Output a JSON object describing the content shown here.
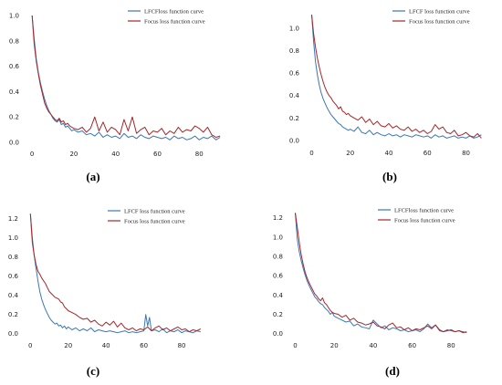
{
  "colors": {
    "lfcf": "#3a76b8",
    "focus": "#a5262a"
  },
  "captions": [
    "(a)",
    "(b)",
    "(c)",
    "(d)"
  ],
  "chart_data": [
    {
      "type": "line",
      "legend": "top-right",
      "xticks": [
        0,
        20,
        40,
        60,
        80
      ],
      "yticks": [
        "0.0",
        "0.2",
        "0.4",
        "0.6",
        "0.8",
        "1.0"
      ],
      "xlim": [
        -4,
        93
      ],
      "ylim": [
        -0.05,
        1.05
      ],
      "series": [
        {
          "name": "LFCFloss function curve",
          "color": "#3a76b8",
          "x": [
            0,
            1,
            2,
            3,
            4,
            5,
            6,
            7,
            8,
            9,
            10,
            11,
            12,
            13,
            14,
            15,
            16,
            17,
            18,
            19,
            20,
            22,
            24,
            26,
            28,
            30,
            32,
            34,
            36,
            38,
            40,
            42,
            44,
            46,
            48,
            50,
            52,
            54,
            56,
            58,
            60,
            62,
            64,
            66,
            68,
            70,
            72,
            74,
            76,
            78,
            80,
            82,
            84,
            86,
            88,
            90
          ],
          "values": [
            1.0,
            0.82,
            0.66,
            0.55,
            0.47,
            0.4,
            0.34,
            0.29,
            0.25,
            0.22,
            0.19,
            0.17,
            0.16,
            0.18,
            0.14,
            0.15,
            0.12,
            0.13,
            0.11,
            0.09,
            0.1,
            0.08,
            0.09,
            0.06,
            0.07,
            0.05,
            0.08,
            0.04,
            0.06,
            0.04,
            0.05,
            0.03,
            0.07,
            0.04,
            0.05,
            0.03,
            0.06,
            0.04,
            0.03,
            0.05,
            0.04,
            0.03,
            0.04,
            0.02,
            0.05,
            0.03,
            0.04,
            0.02,
            0.03,
            0.05,
            0.02,
            0.04,
            0.03,
            0.05,
            0.02,
            0.04
          ]
        },
        {
          "name": "Focus loss function curve",
          "color": "#a5262a",
          "x": [
            0,
            1,
            2,
            3,
            4,
            5,
            6,
            7,
            8,
            9,
            10,
            11,
            12,
            13,
            14,
            15,
            16,
            17,
            18,
            19,
            20,
            22,
            24,
            26,
            28,
            30,
            32,
            34,
            36,
            38,
            40,
            42,
            44,
            46,
            48,
            50,
            52,
            54,
            56,
            58,
            60,
            62,
            64,
            66,
            68,
            70,
            72,
            74,
            76,
            78,
            80,
            82,
            84,
            86,
            88,
            90
          ],
          "values": [
            1.0,
            0.78,
            0.64,
            0.54,
            0.45,
            0.38,
            0.31,
            0.27,
            0.24,
            0.22,
            0.2,
            0.18,
            0.17,
            0.19,
            0.16,
            0.17,
            0.14,
            0.15,
            0.13,
            0.12,
            0.11,
            0.1,
            0.12,
            0.08,
            0.11,
            0.2,
            0.09,
            0.16,
            0.08,
            0.12,
            0.1,
            0.06,
            0.18,
            0.09,
            0.2,
            0.07,
            0.1,
            0.12,
            0.06,
            0.09,
            0.08,
            0.11,
            0.06,
            0.09,
            0.07,
            0.12,
            0.08,
            0.1,
            0.09,
            0.13,
            0.11,
            0.08,
            0.12,
            0.06,
            0.04,
            0.05
          ]
        }
      ]
    },
    {
      "type": "line",
      "legend": "top-right",
      "xticks": [
        0,
        20,
        40,
        60,
        80
      ],
      "yticks": [
        "0.0",
        "0.2",
        "0.4",
        "0.6",
        "0.8",
        "1.0"
      ],
      "xlim": [
        -4,
        93
      ],
      "ylim": [
        -0.05,
        1.17
      ],
      "series": [
        {
          "name": "LFCF loss function curve",
          "color": "#3a76b8",
          "x": [
            0,
            1,
            2,
            3,
            4,
            5,
            6,
            7,
            8,
            9,
            10,
            11,
            12,
            13,
            14,
            15,
            16,
            17,
            18,
            19,
            20,
            22,
            24,
            26,
            28,
            30,
            32,
            34,
            36,
            38,
            40,
            42,
            44,
            46,
            48,
            50,
            52,
            54,
            56,
            58,
            60,
            62,
            64,
            66,
            68,
            70,
            72,
            74,
            76,
            78,
            80,
            82,
            84,
            86,
            88
          ],
          "values": [
            1.12,
            0.88,
            0.7,
            0.58,
            0.49,
            0.42,
            0.37,
            0.33,
            0.29,
            0.26,
            0.23,
            0.21,
            0.19,
            0.17,
            0.15,
            0.14,
            0.12,
            0.11,
            0.1,
            0.09,
            0.1,
            0.08,
            0.12,
            0.07,
            0.06,
            0.09,
            0.05,
            0.07,
            0.05,
            0.04,
            0.06,
            0.04,
            0.05,
            0.03,
            0.05,
            0.04,
            0.03,
            0.05,
            0.04,
            0.03,
            0.04,
            0.02,
            0.05,
            0.03,
            0.04,
            0.02,
            0.03,
            0.04,
            0.02,
            0.03,
            0.02,
            0.04,
            0.02,
            0.03,
            0.05
          ]
        },
        {
          "name": "Focus loss function curve",
          "color": "#a5262a",
          "x": [
            0,
            1,
            2,
            3,
            4,
            5,
            6,
            7,
            8,
            9,
            10,
            11,
            12,
            13,
            14,
            15,
            16,
            17,
            18,
            19,
            20,
            22,
            24,
            26,
            28,
            30,
            32,
            34,
            36,
            38,
            40,
            42,
            44,
            46,
            48,
            50,
            52,
            54,
            56,
            58,
            60,
            62,
            64,
            66,
            68,
            70,
            72,
            74,
            76,
            78,
            80,
            82,
            84,
            86,
            88
          ],
          "values": [
            1.12,
            0.95,
            0.83,
            0.73,
            0.65,
            0.58,
            0.52,
            0.47,
            0.43,
            0.4,
            0.38,
            0.35,
            0.33,
            0.31,
            0.28,
            0.3,
            0.26,
            0.25,
            0.23,
            0.24,
            0.22,
            0.2,
            0.18,
            0.21,
            0.16,
            0.19,
            0.14,
            0.17,
            0.13,
            0.12,
            0.15,
            0.11,
            0.13,
            0.1,
            0.09,
            0.12,
            0.08,
            0.1,
            0.07,
            0.09,
            0.06,
            0.08,
            0.14,
            0.1,
            0.12,
            0.07,
            0.06,
            0.09,
            0.04,
            0.05,
            0.07,
            0.04,
            0.03,
            0.06,
            0.02
          ]
        }
      ]
    },
    {
      "type": "line",
      "legend": "top-right",
      "xticks": [
        0,
        20,
        40,
        60,
        80
      ],
      "yticks": [
        "0.0",
        "0.2",
        "0.4",
        "0.6",
        "0.8",
        "1.0",
        "1.2"
      ],
      "xlim": [
        -4,
        93
      ],
      "ylim": [
        -0.05,
        1.3
      ],
      "series": [
        {
          "name": "LFCF loss function curve",
          "color": "#3a76b8",
          "x": [
            0,
            1,
            2,
            3,
            4,
            5,
            6,
            7,
            8,
            9,
            10,
            11,
            12,
            13,
            14,
            15,
            16,
            17,
            18,
            19,
            20,
            22,
            24,
            26,
            28,
            30,
            32,
            34,
            36,
            38,
            40,
            42,
            44,
            46,
            48,
            50,
            52,
            54,
            56,
            58,
            60,
            61,
            62,
            63,
            64,
            66,
            68,
            70,
            72,
            74,
            76,
            78,
            80,
            82,
            84,
            86,
            88,
            90
          ],
          "values": [
            1.25,
            1.0,
            0.82,
            0.68,
            0.55,
            0.44,
            0.36,
            0.3,
            0.25,
            0.21,
            0.17,
            0.14,
            0.12,
            0.1,
            0.11,
            0.08,
            0.09,
            0.06,
            0.08,
            0.05,
            0.07,
            0.04,
            0.06,
            0.03,
            0.05,
            0.03,
            0.06,
            0.02,
            0.04,
            0.03,
            0.02,
            0.03,
            0.02,
            0.01,
            0.02,
            0.03,
            0.01,
            0.02,
            0.01,
            0.02,
            0.03,
            0.2,
            0.08,
            0.17,
            0.03,
            0.04,
            0.02,
            0.05,
            0.01,
            0.03,
            0.02,
            0.04,
            0.01,
            0.03,
            0.02,
            0.01,
            0.03,
            0.02
          ]
        },
        {
          "name": "Focus loss function curve",
          "color": "#a5262a",
          "x": [
            0,
            1,
            2,
            3,
            4,
            5,
            6,
            7,
            8,
            9,
            10,
            11,
            12,
            13,
            14,
            15,
            16,
            17,
            18,
            19,
            20,
            22,
            24,
            26,
            28,
            30,
            32,
            34,
            36,
            38,
            40,
            42,
            44,
            46,
            48,
            50,
            52,
            54,
            56,
            58,
            60,
            62,
            64,
            66,
            68,
            70,
            72,
            74,
            76,
            78,
            80,
            82,
            84,
            86,
            88,
            90
          ],
          "values": [
            1.25,
            0.95,
            0.82,
            0.72,
            0.65,
            0.62,
            0.58,
            0.55,
            0.52,
            0.48,
            0.44,
            0.42,
            0.4,
            0.38,
            0.37,
            0.36,
            0.33,
            0.32,
            0.28,
            0.26,
            0.24,
            0.22,
            0.2,
            0.17,
            0.15,
            0.16,
            0.12,
            0.14,
            0.1,
            0.08,
            0.12,
            0.09,
            0.13,
            0.07,
            0.11,
            0.06,
            0.04,
            0.06,
            0.03,
            0.05,
            0.04,
            0.07,
            0.03,
            0.06,
            0.08,
            0.04,
            0.06,
            0.03,
            0.05,
            0.07,
            0.04,
            0.05,
            0.02,
            0.04,
            0.03,
            0.05
          ]
        }
      ]
    },
    {
      "type": "line",
      "legend": "top-right",
      "xticks": [
        0,
        20,
        40,
        60,
        80
      ],
      "yticks": [
        "0.0",
        "0.2",
        "0.4",
        "0.6",
        "0.8",
        "1.0",
        "1.2"
      ],
      "xlim": [
        -4,
        93
      ],
      "ylim": [
        -0.05,
        1.3
      ],
      "series": [
        {
          "name": "LFCFloss function curve",
          "color": "#3a76b8",
          "x": [
            0,
            1,
            2,
            3,
            4,
            5,
            6,
            7,
            8,
            9,
            10,
            11,
            12,
            13,
            14,
            15,
            16,
            17,
            18,
            19,
            20,
            22,
            24,
            26,
            28,
            30,
            32,
            34,
            36,
            38,
            40,
            42,
            44,
            46,
            48,
            50,
            52,
            54,
            56,
            58,
            60,
            62,
            64,
            66,
            68,
            70,
            72,
            74,
            76,
            78,
            80,
            82,
            84,
            86,
            88
          ],
          "values": [
            1.25,
            0.98,
            0.85,
            0.76,
            0.68,
            0.61,
            0.55,
            0.5,
            0.46,
            0.42,
            0.38,
            0.36,
            0.33,
            0.31,
            0.3,
            0.27,
            0.25,
            0.23,
            0.2,
            0.22,
            0.18,
            0.16,
            0.14,
            0.12,
            0.13,
            0.08,
            0.1,
            0.07,
            0.06,
            0.05,
            0.14,
            0.1,
            0.06,
            0.08,
            0.04,
            0.06,
            0.05,
            0.03,
            0.04,
            0.02,
            0.03,
            0.04,
            0.02,
            0.05,
            0.1,
            0.06,
            0.09,
            0.03,
            0.02,
            0.04,
            0.03,
            0.02,
            0.03,
            0.02,
            0.01
          ]
        },
        {
          "name": "Focus loss function curve",
          "color": "#a5262a",
          "x": [
            0,
            1,
            2,
            3,
            4,
            5,
            6,
            7,
            8,
            9,
            10,
            11,
            12,
            13,
            14,
            15,
            16,
            17,
            18,
            19,
            20,
            22,
            24,
            26,
            28,
            30,
            32,
            34,
            36,
            38,
            40,
            42,
            44,
            46,
            48,
            50,
            52,
            54,
            56,
            58,
            60,
            62,
            64,
            66,
            68,
            70,
            72,
            74,
            76,
            78,
            80,
            82,
            84,
            86,
            88
          ],
          "values": [
            1.25,
            1.1,
            0.95,
            0.82,
            0.72,
            0.64,
            0.58,
            0.53,
            0.49,
            0.45,
            0.41,
            0.39,
            0.36,
            0.34,
            0.37,
            0.32,
            0.3,
            0.27,
            0.24,
            0.22,
            0.21,
            0.2,
            0.17,
            0.19,
            0.14,
            0.16,
            0.12,
            0.11,
            0.09,
            0.1,
            0.12,
            0.08,
            0.07,
            0.05,
            0.09,
            0.11,
            0.06,
            0.07,
            0.04,
            0.06,
            0.03,
            0.05,
            0.04,
            0.06,
            0.08,
            0.05,
            0.09,
            0.04,
            0.02,
            0.03,
            0.04,
            0.02,
            0.03,
            0.01,
            0.02
          ]
        }
      ]
    }
  ]
}
